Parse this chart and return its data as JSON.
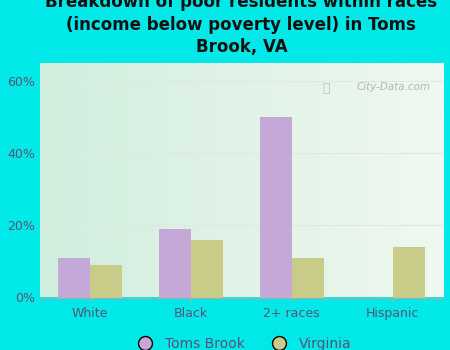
{
  "title": "Breakdown of poor residents within races\n(income below poverty level) in Toms\nBrook, VA",
  "categories": [
    "White",
    "Black",
    "2+ races",
    "Hispanic"
  ],
  "toms_brook": [
    11,
    19,
    50,
    0
  ],
  "virginia": [
    9,
    16,
    11,
    14
  ],
  "toms_brook_color": "#c4a8d8",
  "virginia_color": "#c8cc88",
  "background_color": "#00e8e8",
  "plot_bg_color_top_right": "#f0f8f0",
  "plot_bg_color_bottom_left": "#d0eedd",
  "ylabel_ticks": [
    "0%",
    "20%",
    "40%",
    "60%"
  ],
  "yticks": [
    0,
    20,
    40,
    60
  ],
  "ylim": [
    0,
    65
  ],
  "bar_width": 0.32,
  "title_fontsize": 12,
  "tick_fontsize": 9,
  "legend_fontsize": 10,
  "watermark": "City-Data.com",
  "tick_color": "#555577",
  "grid_color": "#e0e8e0"
}
